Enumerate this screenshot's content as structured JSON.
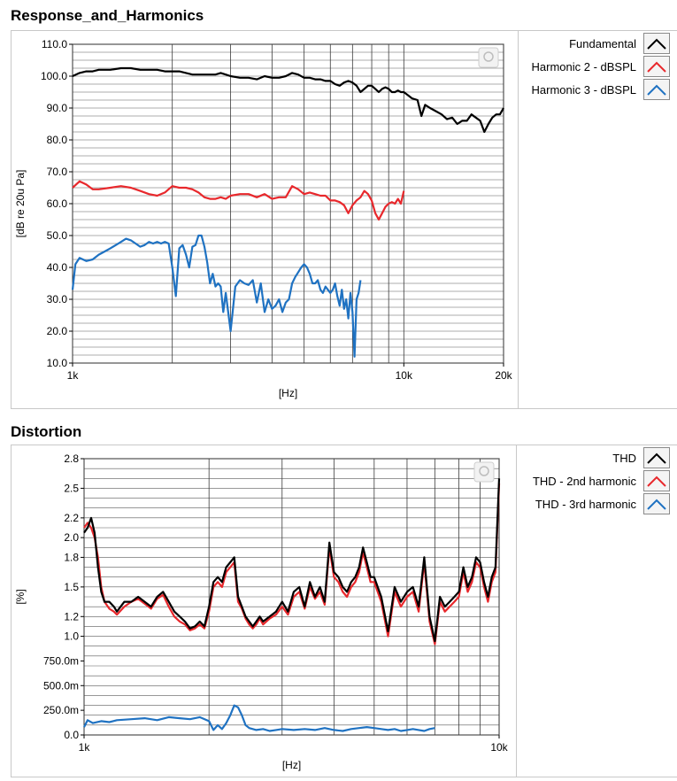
{
  "chart_data": [
    {
      "type": "line",
      "title": "Response_and_Harmonics",
      "xlabel": "[Hz]",
      "ylabel": "[dB re 20u Pa]",
      "xscale": "log",
      "xlim": [
        1000,
        20000
      ],
      "ylim": [
        10,
        110
      ],
      "x_ticks": [
        1000,
        10000,
        20000
      ],
      "x_tick_labels": [
        "1k",
        "10k",
        "20k"
      ],
      "y_ticks": [
        10,
        20,
        30,
        40,
        50,
        60,
        70,
        80,
        90,
        100,
        110
      ],
      "y_tick_labels": [
        "10.0",
        "20.0",
        "30.0",
        "40.0",
        "50.0",
        "60.0",
        "70.0",
        "80.0",
        "90.0",
        "100.0",
        "110.0"
      ],
      "legend": [
        "Fundamental",
        "Harmonic 2 - dBSPL",
        "Harmonic 3 - dBSPL"
      ],
      "series": [
        {
          "name": "Fundamental",
          "color": "#000000",
          "x": [
            1000,
            1050,
            1100,
            1150,
            1200,
            1300,
            1400,
            1500,
            1600,
            1700,
            1800,
            1900,
            2000,
            2100,
            2200,
            2300,
            2400,
            2500,
            2600,
            2700,
            2800,
            2900,
            3000,
            3200,
            3400,
            3600,
            3800,
            4000,
            4200,
            4400,
            4600,
            4800,
            5000,
            5200,
            5400,
            5600,
            5800,
            6000,
            6200,
            6400,
            6600,
            6800,
            7000,
            7200,
            7400,
            7600,
            7800,
            8000,
            8200,
            8400,
            8600,
            8800,
            9000,
            9200,
            9400,
            9600,
            9800,
            10000,
            10300,
            10600,
            11000,
            11300,
            11600,
            12000,
            12500,
            13000,
            13500,
            14000,
            14500,
            15000,
            15500,
            16000,
            16500,
            17000,
            17500,
            18000,
            18500,
            19000,
            19500,
            20000
          ],
          "y": [
            100,
            101,
            101.5,
            101.5,
            102,
            102,
            102.5,
            102.5,
            102,
            102,
            102,
            101.5,
            101.5,
            101.5,
            101,
            100.5,
            100.5,
            100.5,
            100.5,
            100.5,
            101,
            100.5,
            100,
            99.5,
            99.5,
            99,
            100,
            99.5,
            99.5,
            100,
            101,
            100.5,
            99.5,
            99.5,
            99,
            99,
            98.5,
            98.5,
            97.5,
            97,
            98,
            98.5,
            98,
            97,
            95,
            96,
            97,
            97,
            96,
            95,
            96,
            96.5,
            96,
            95,
            95,
            95.5,
            95,
            95,
            94,
            93,
            92.5,
            87.5,
            91,
            90,
            89,
            88,
            86.5,
            87,
            85,
            86,
            86,
            88,
            87,
            86,
            82.5,
            85,
            87,
            88,
            88,
            90
          ]
        },
        {
          "name": "Harmonic 2 - dBSPL",
          "color": "#e8282c",
          "x": [
            1000,
            1050,
            1100,
            1150,
            1200,
            1300,
            1400,
            1500,
            1600,
            1700,
            1800,
            1900,
            2000,
            2100,
            2200,
            2300,
            2400,
            2500,
            2600,
            2700,
            2800,
            2900,
            3000,
            3200,
            3400,
            3600,
            3800,
            4000,
            4200,
            4400,
            4600,
            4800,
            5000,
            5200,
            5400,
            5600,
            5800,
            6000,
            6200,
            6400,
            6600,
            6800,
            7000,
            7200,
            7400,
            7600,
            7800,
            8000,
            8200,
            8400,
            8600,
            8800,
            9000,
            9200,
            9400,
            9600,
            9800,
            10000
          ],
          "y": [
            65,
            67,
            66,
            64.5,
            64.5,
            65,
            65.5,
            65,
            64,
            63,
            62.5,
            63.5,
            65.5,
            65,
            65,
            64.5,
            63.5,
            62,
            61.5,
            61.5,
            62,
            61.5,
            62.5,
            63,
            63,
            62,
            63,
            61.5,
            62,
            62,
            65.5,
            64.5,
            63,
            63.5,
            63,
            62.5,
            62.5,
            61,
            61,
            60.5,
            59.5,
            57,
            59.5,
            61,
            62,
            64,
            63,
            61,
            57,
            55,
            57,
            59,
            60,
            60.5,
            60,
            61.5,
            60,
            64
          ]
        },
        {
          "name": "Harmonic 3 - dBSPL",
          "color": "#1f72c2",
          "x": [
            1000,
            1020,
            1050,
            1100,
            1150,
            1200,
            1250,
            1300,
            1350,
            1400,
            1450,
            1500,
            1550,
            1600,
            1650,
            1700,
            1750,
            1800,
            1850,
            1900,
            1950,
            2000,
            2050,
            2100,
            2150,
            2200,
            2250,
            2300,
            2350,
            2400,
            2450,
            2500,
            2550,
            2600,
            2650,
            2700,
            2750,
            2800,
            2850,
            2900,
            3000,
            3100,
            3200,
            3300,
            3400,
            3500,
            3600,
            3700,
            3800,
            3900,
            4000,
            4100,
            4200,
            4300,
            4400,
            4500,
            4600,
            4700,
            4800,
            4900,
            5000,
            5100,
            5200,
            5300,
            5400,
            5500,
            5600,
            5700,
            5800,
            5900,
            6000,
            6100,
            6200,
            6300,
            6400,
            6500,
            6600,
            6700,
            6800,
            6900,
            7000,
            7100,
            7200,
            7300,
            7400
          ],
          "y": [
            33,
            41,
            43,
            42,
            42.5,
            44,
            45,
            46,
            47,
            48,
            49,
            48.5,
            47.5,
            46.5,
            47,
            48,
            47.5,
            48,
            47.5,
            48,
            47.5,
            40,
            31,
            46,
            47,
            44,
            40,
            46.5,
            47,
            50,
            50,
            46.5,
            41.5,
            35,
            38,
            34,
            35,
            34,
            26,
            32,
            20,
            34,
            36,
            35,
            34.5,
            36,
            29,
            35,
            26,
            30,
            27,
            28,
            30,
            26,
            29,
            30,
            35,
            37,
            38.5,
            40,
            41,
            40,
            38,
            35,
            35,
            36,
            33,
            32,
            34,
            33,
            32,
            33,
            35,
            31,
            28,
            33,
            27,
            30,
            24,
            32,
            26,
            12,
            30,
            32,
            36
          ]
        }
      ]
    },
    {
      "type": "line",
      "title": "Distortion",
      "xlabel": "[Hz]",
      "ylabel": "[%]",
      "xscale": "log",
      "xlim": [
        1000,
        10000
      ],
      "ylim": [
        0,
        2.8
      ],
      "x_ticks": [
        1000,
        10000
      ],
      "x_tick_labels": [
        "1k",
        "10k"
      ],
      "y_ticks": [
        0,
        0.25,
        0.5,
        0.75,
        1.0,
        1.2,
        1.5,
        1.8,
        2.0,
        2.2,
        2.5,
        2.8
      ],
      "y_tick_labels": [
        "0.0",
        "250.0m",
        "500.0m",
        "750.0m",
        "1.0",
        "1.2",
        "1.5",
        "1.8",
        "2.0",
        "2.2",
        "2.5",
        "2.8"
      ],
      "legend": [
        "THD",
        "THD - 2nd harmonic",
        "THD - 3rd harmonic"
      ],
      "series": [
        {
          "name": "THD",
          "color": "#000000",
          "x": [
            1000,
            1020,
            1040,
            1060,
            1080,
            1100,
            1120,
            1150,
            1180,
            1200,
            1250,
            1300,
            1350,
            1400,
            1450,
            1500,
            1550,
            1600,
            1650,
            1700,
            1750,
            1800,
            1850,
            1900,
            1950,
            2000,
            2050,
            2100,
            2150,
            2200,
            2250,
            2300,
            2350,
            2400,
            2450,
            2500,
            2550,
            2600,
            2650,
            2700,
            2800,
            2900,
            3000,
            3100,
            3200,
            3300,
            3400,
            3500,
            3600,
            3700,
            3800,
            3900,
            4000,
            4100,
            4200,
            4300,
            4400,
            4500,
            4600,
            4700,
            4800,
            4900,
            5000,
            5200,
            5400,
            5600,
            5800,
            6000,
            6200,
            6400,
            6600,
            6800,
            7000,
            7200,
            7400,
            7600,
            7800,
            8000,
            8200,
            8400,
            8600,
            8800,
            9000,
            9200,
            9400,
            9600,
            9800,
            10000
          ],
          "y": [
            2.05,
            2.1,
            2.2,
            2.05,
            1.7,
            1.45,
            1.35,
            1.35,
            1.3,
            1.25,
            1.35,
            1.35,
            1.4,
            1.35,
            1.3,
            1.4,
            1.45,
            1.35,
            1.25,
            1.2,
            1.15,
            1.08,
            1.1,
            1.15,
            1.1,
            1.3,
            1.55,
            1.6,
            1.55,
            1.7,
            1.75,
            1.8,
            1.4,
            1.3,
            1.2,
            1.15,
            1.1,
            1.15,
            1.2,
            1.15,
            1.2,
            1.25,
            1.35,
            1.25,
            1.45,
            1.5,
            1.3,
            1.55,
            1.4,
            1.5,
            1.35,
            1.95,
            1.65,
            1.6,
            1.5,
            1.45,
            1.55,
            1.6,
            1.7,
            1.9,
            1.75,
            1.6,
            1.6,
            1.4,
            1.05,
            1.5,
            1.35,
            1.45,
            1.5,
            1.3,
            1.8,
            1.2,
            0.95,
            1.4,
            1.3,
            1.35,
            1.4,
            1.45,
            1.7,
            1.5,
            1.6,
            1.8,
            1.75,
            1.55,
            1.4,
            1.6,
            1.7,
            2.6
          ]
        },
        {
          "name": "THD - 2nd harmonic",
          "color": "#e8282c",
          "x": [
            1000,
            1020,
            1040,
            1060,
            1080,
            1100,
            1120,
            1150,
            1180,
            1200,
            1250,
            1300,
            1350,
            1400,
            1450,
            1500,
            1550,
            1600,
            1650,
            1700,
            1750,
            1800,
            1850,
            1900,
            1950,
            2000,
            2050,
            2100,
            2150,
            2200,
            2250,
            2300,
            2350,
            2400,
            2450,
            2500,
            2550,
            2600,
            2650,
            2700,
            2800,
            2900,
            3000,
            3100,
            3200,
            3300,
            3400,
            3500,
            3600,
            3700,
            3800,
            3900,
            4000,
            4100,
            4200,
            4300,
            4400,
            4500,
            4600,
            4700,
            4800,
            4900,
            5000,
            5200,
            5400,
            5600,
            5800,
            6000,
            6200,
            6400,
            6600,
            6800,
            7000,
            7200,
            7400,
            7600,
            7800,
            8000,
            8200,
            8400,
            8600,
            8800,
            9000,
            9200,
            9400,
            9600,
            9800,
            10000
          ],
          "y": [
            2.1,
            2.15,
            2.1,
            2.0,
            1.8,
            1.5,
            1.35,
            1.28,
            1.25,
            1.22,
            1.3,
            1.35,
            1.38,
            1.33,
            1.28,
            1.38,
            1.42,
            1.3,
            1.2,
            1.15,
            1.12,
            1.06,
            1.08,
            1.12,
            1.08,
            1.25,
            1.5,
            1.55,
            1.5,
            1.65,
            1.7,
            1.75,
            1.35,
            1.28,
            1.18,
            1.12,
            1.08,
            1.12,
            1.18,
            1.12,
            1.18,
            1.22,
            1.3,
            1.22,
            1.4,
            1.45,
            1.28,
            1.5,
            1.38,
            1.45,
            1.32,
            1.9,
            1.6,
            1.55,
            1.45,
            1.4,
            1.5,
            1.55,
            1.65,
            1.85,
            1.7,
            1.55,
            1.55,
            1.35,
            1.0,
            1.45,
            1.3,
            1.4,
            1.45,
            1.25,
            1.75,
            1.15,
            0.92,
            1.35,
            1.25,
            1.3,
            1.35,
            1.4,
            1.65,
            1.45,
            1.55,
            1.75,
            1.7,
            1.5,
            1.35,
            1.55,
            1.65,
            2.55
          ]
        },
        {
          "name": "THD - 3rd harmonic",
          "color": "#1f72c2",
          "x": [
            1000,
            1020,
            1050,
            1100,
            1150,
            1200,
            1300,
            1400,
            1500,
            1600,
            1700,
            1800,
            1900,
            2000,
            2050,
            2100,
            2150,
            2200,
            2250,
            2300,
            2350,
            2400,
            2450,
            2500,
            2600,
            2700,
            2800,
            2900,
            3000,
            3200,
            3400,
            3600,
            3800,
            4000,
            4200,
            4400,
            4600,
            4800,
            5000,
            5200,
            5400,
            5600,
            5800,
            6000,
            6200,
            6400,
            6600,
            6800,
            7000
          ],
          "y": [
            0.08,
            0.15,
            0.12,
            0.14,
            0.13,
            0.15,
            0.16,
            0.17,
            0.15,
            0.18,
            0.17,
            0.16,
            0.18,
            0.14,
            0.05,
            0.1,
            0.06,
            0.12,
            0.2,
            0.3,
            0.28,
            0.2,
            0.1,
            0.07,
            0.05,
            0.06,
            0.04,
            0.05,
            0.06,
            0.05,
            0.06,
            0.05,
            0.07,
            0.05,
            0.04,
            0.06,
            0.07,
            0.08,
            0.07,
            0.06,
            0.05,
            0.06,
            0.04,
            0.05,
            0.06,
            0.05,
            0.04,
            0.06,
            0.07
          ]
        }
      ]
    }
  ]
}
